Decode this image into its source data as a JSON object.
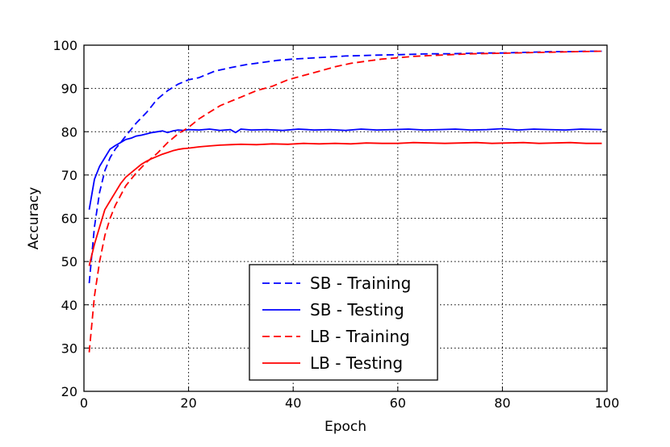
{
  "chart_data": {
    "type": "line",
    "title": "",
    "xlabel": "Epoch",
    "ylabel": "Accuracy",
    "xlim": [
      0,
      100
    ],
    "ylim": [
      20,
      100
    ],
    "xticks": [
      0,
      20,
      40,
      60,
      80,
      100
    ],
    "yticks": [
      20,
      30,
      40,
      50,
      60,
      70,
      80,
      90,
      100
    ],
    "grid": true,
    "legend_position": "lower-center",
    "series": [
      {
        "name": "SB - Training",
        "color": "#0000ff",
        "style": "dashed",
        "x": [
          1,
          2,
          3,
          4,
          5,
          6,
          7,
          8,
          9,
          10,
          12,
          14,
          16,
          18,
          20,
          22,
          25,
          28,
          31,
          34,
          37,
          40,
          43,
          46,
          50,
          53,
          56,
          60,
          63,
          66,
          70,
          73,
          76,
          80,
          83,
          86,
          90,
          93,
          96,
          99
        ],
        "y": [
          45,
          58,
          66,
          71,
          74,
          76,
          77.5,
          79,
          80.5,
          82,
          84.5,
          87.5,
          89.5,
          91,
          92,
          92.5,
          94,
          94.8,
          95.5,
          96,
          96.5,
          96.8,
          97,
          97.2,
          97.5,
          97.6,
          97.7,
          97.8,
          97.9,
          98,
          98,
          98.1,
          98.2,
          98.2,
          98.3,
          98.4,
          98.5,
          98.5,
          98.6,
          98.6
        ]
      },
      {
        "name": "SB - Testing",
        "color": "#0000ff",
        "style": "solid",
        "x": [
          1,
          2,
          3,
          4,
          5,
          6,
          7,
          8,
          9,
          10,
          11,
          12,
          13,
          14,
          15,
          16,
          17,
          18,
          19,
          20,
          22,
          24,
          26,
          28,
          29,
          30,
          32,
          35,
          38,
          41,
          44,
          47,
          50,
          53,
          56,
          59,
          62,
          65,
          68,
          71,
          74,
          77,
          80,
          83,
          86,
          89,
          92,
          95,
          99
        ],
        "y": [
          62,
          69,
          72,
          74,
          76,
          76.8,
          77.5,
          78.2,
          78.5,
          79,
          79.2,
          79.5,
          79.8,
          80,
          80.2,
          79.8,
          80.2,
          80.4,
          80.3,
          80.5,
          80.4,
          80.6,
          80.3,
          80.5,
          79.8,
          80.6,
          80.4,
          80.5,
          80.3,
          80.6,
          80.4,
          80.5,
          80.3,
          80.6,
          80.4,
          80.5,
          80.6,
          80.4,
          80.5,
          80.6,
          80.4,
          80.5,
          80.7,
          80.4,
          80.6,
          80.5,
          80.4,
          80.6,
          80.5
        ]
      },
      {
        "name": "LB - Training",
        "color": "#ff0000",
        "style": "dashed",
        "x": [
          1,
          2,
          3,
          4,
          5,
          6,
          8,
          10,
          12,
          14,
          16,
          18,
          20,
          22,
          24,
          26,
          28,
          30,
          33,
          36,
          39,
          42,
          45,
          48,
          51,
          54,
          57,
          60,
          63,
          66,
          70,
          74,
          78,
          82,
          86,
          90,
          94,
          99
        ],
        "y": [
          29,
          42,
          50,
          56,
          60,
          63,
          67.5,
          70.5,
          73,
          75,
          77.5,
          79.5,
          81,
          83,
          84.5,
          86,
          87,
          88,
          89.5,
          90.5,
          92,
          93,
          94,
          95,
          95.8,
          96.3,
          96.8,
          97.1,
          97.4,
          97.6,
          97.8,
          98,
          98.1,
          98.2,
          98.3,
          98.4,
          98.5,
          98.6
        ]
      },
      {
        "name": "LB - Testing",
        "color": "#ff0000",
        "style": "solid",
        "x": [
          1,
          2,
          3,
          4,
          5,
          6,
          7,
          8,
          9,
          10,
          11,
          12,
          13,
          14,
          15,
          16,
          17,
          18,
          19,
          20,
          22,
          24,
          26,
          28,
          30,
          33,
          36,
          39,
          42,
          45,
          48,
          51,
          54,
          57,
          60,
          63,
          66,
          69,
          72,
          75,
          78,
          81,
          84,
          87,
          90,
          93,
          96,
          99
        ],
        "y": [
          49,
          54,
          58,
          62,
          64,
          66,
          68,
          69.5,
          70.5,
          71.5,
          72.5,
          73.2,
          73.8,
          74.3,
          74.8,
          75.2,
          75.6,
          75.9,
          76.1,
          76.2,
          76.5,
          76.7,
          76.9,
          77,
          77.1,
          77,
          77.2,
          77.1,
          77.3,
          77.2,
          77.3,
          77.2,
          77.4,
          77.3,
          77.3,
          77.5,
          77.4,
          77.3,
          77.4,
          77.5,
          77.3,
          77.4,
          77.5,
          77.3,
          77.4,
          77.5,
          77.3,
          77.3
        ]
      }
    ]
  }
}
